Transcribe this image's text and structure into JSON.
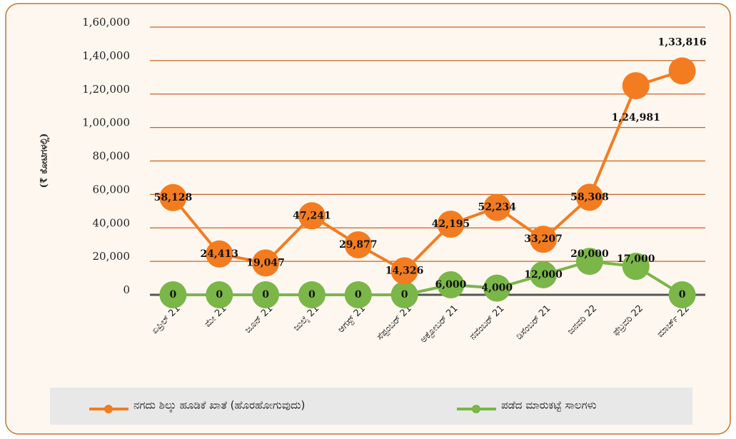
{
  "chart_data": {
    "type": "line",
    "y_label": "(₹ ಕೋಟಿಗಳಲ್ಲಿ)",
    "categories": [
      "ಏಪ್ರಿಲ್ 21",
      "ಮೇ 21",
      "ಜೂನ್ 21",
      "ಜುಲೈ 21",
      "ಆಗಸ್ಟ್ 21",
      "ಸೆಪ್ಟಂಬರ್ 21",
      "ಅಕ್ಟೋಬರ್ 21",
      "ನವೆಂಬರ್ 21",
      "ಡಿಸೆಂಬರ್ 21",
      "ಜನವರಿ 22",
      "ಫೆಬ್ರವರಿ 22",
      "ಮಾರ್ಚ್ 22"
    ],
    "series": [
      {
        "name": "ನಗದು ಶಿಲ್ಕು ಹೂಡಿಕೆ ಖಾತೆ (ಹೊರಹೋಗುವುದು)",
        "color": "#f47c20",
        "values": [
          58128,
          24413,
          19047,
          47241,
          29877,
          14326,
          42195,
          52234,
          33207,
          58308,
          124981,
          133816
        ],
        "value_labels": [
          "58,128",
          "24,413",
          "19,047",
          "47,241",
          "29,877",
          "14,326",
          "42,195",
          "52,234",
          "33,207",
          "58,308",
          "1,24,981",
          "1,33,816"
        ]
      },
      {
        "name": "ಪಡೆದ ಮಾರುಕಟ್ಟೆ ಸಾಲಗಳು",
        "color": "#7ab648",
        "values": [
          0,
          0,
          0,
          0,
          0,
          0,
          6000,
          4000,
          12000,
          20000,
          17000,
          0
        ],
        "value_labels": [
          "0",
          "0",
          "0",
          "0",
          "0",
          "0",
          "6,000",
          "4,000",
          "12,000",
          "20,000",
          "17,000",
          "0"
        ]
      }
    ],
    "ylim": [
      0,
      160000
    ],
    "yticks": [
      0,
      {
        "value": 20000,
        "label": "20,000"
      },
      {
        "value": 40000,
        "label": "40,000"
      },
      {
        "value": 60000,
        "label": "60,000"
      },
      {
        "value": 80000,
        "label": "80,000"
      },
      {
        "value": 100000,
        "label": "1,00,000"
      },
      {
        "value": 120000,
        "label": "1,20,000"
      },
      {
        "value": 140000,
        "label": "1,40,000"
      },
      {
        "value": 160000,
        "label": "1,60,000"
      }
    ],
    "grid": true
  }
}
